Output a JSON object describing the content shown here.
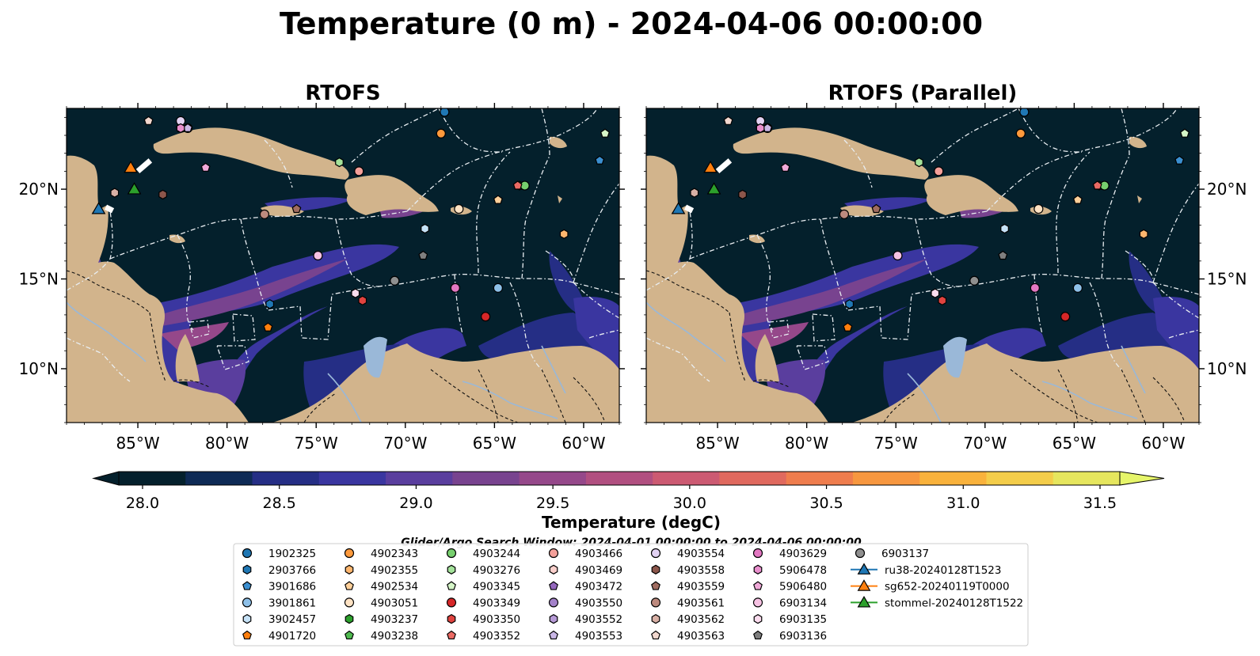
{
  "title": "Temperature (0 m) - 2024-04-06 00:00:00",
  "panels": [
    {
      "title": "RTOFS"
    },
    {
      "title": "RTOFS (Parallel)"
    }
  ],
  "map": {
    "lon_range": [
      -89,
      -58
    ],
    "lat_range": [
      7,
      24.5
    ],
    "lon_ticks": [
      "85°W",
      "80°W",
      "75°W",
      "70°W",
      "65°W",
      "60°W"
    ],
    "lon_tick_values": [
      -85,
      -80,
      -75,
      -70,
      -65,
      -60
    ],
    "lat_ticks": [
      "20°N",
      "15°N",
      "10°N"
    ],
    "lat_tick_values": [
      20,
      15,
      10
    ],
    "land_color": "#d2b48c",
    "ocean_color": "#04202c",
    "river_color": "#9ab8d8"
  },
  "colorbar": {
    "label": "Temperature (degC)",
    "min": 28.0,
    "max": 31.5,
    "ticks": [
      "28.0",
      "28.5",
      "29.0",
      "29.5",
      "30.0",
      "30.5",
      "31.0",
      "31.5"
    ],
    "colors": [
      "#04202c",
      "#0e2a55",
      "#252e85",
      "#3a36a0",
      "#5a3e9e",
      "#78438f",
      "#95488a",
      "#b14f80",
      "#cc5a72",
      "#e0695e",
      "#ef7d4d",
      "#f7973f",
      "#f9b23c",
      "#f4cd4a",
      "#e6e65e"
    ],
    "extend_low_color": "#04202c",
    "extend_high_color": "#e6f56a"
  },
  "search_window_note": "Glider/Argo Search Window: 2024-04-01 00:00:00 to 2024-04-06 00:00:00",
  "legend": [
    {
      "label": "1902325",
      "marker": "circle",
      "color": "#1f77b4"
    },
    {
      "label": "2903766",
      "marker": "hexagon",
      "color": "#1f77b4"
    },
    {
      "label": "3901686",
      "marker": "pentagon",
      "color": "#3b8fd0"
    },
    {
      "label": "3901861",
      "marker": "circle",
      "color": "#8ec0e8"
    },
    {
      "label": "3902457",
      "marker": "hexagon",
      "color": "#c6e2f7"
    },
    {
      "label": "4901720",
      "marker": "pentagon",
      "color": "#ff7f0e"
    },
    {
      "label": "4902343",
      "marker": "circle",
      "color": "#ff9a3c"
    },
    {
      "label": "4902355",
      "marker": "hexagon",
      "color": "#ffb66e"
    },
    {
      "label": "4902534",
      "marker": "pentagon",
      "color": "#ffd09a"
    },
    {
      "label": "4903051",
      "marker": "circle",
      "color": "#ffe3c4"
    },
    {
      "label": "4903237",
      "marker": "hexagon",
      "color": "#2ca02c"
    },
    {
      "label": "4903238",
      "marker": "pentagon",
      "color": "#4fba4f"
    },
    {
      "label": "4903244",
      "marker": "circle",
      "color": "#77cf6e"
    },
    {
      "label": "4903276",
      "marker": "hexagon",
      "color": "#a4e29a"
    },
    {
      "label": "4903345",
      "marker": "pentagon",
      "color": "#d6f6c8"
    },
    {
      "label": "4903349",
      "marker": "circle",
      "color": "#d62728"
    },
    {
      "label": "4903350",
      "marker": "hexagon",
      "color": "#e0433f"
    },
    {
      "label": "4903352",
      "marker": "pentagon",
      "color": "#ea6a64"
    },
    {
      "label": "4903466",
      "marker": "circle",
      "color": "#f4a09a"
    },
    {
      "label": "4903469",
      "marker": "hexagon",
      "color": "#fbd0cc"
    },
    {
      "label": "4903472",
      "marker": "pentagon",
      "color": "#9467bd"
    },
    {
      "label": "4903550",
      "marker": "circle",
      "color": "#a381c9"
    },
    {
      "label": "4903552",
      "marker": "hexagon",
      "color": "#b69ad6"
    },
    {
      "label": "4903553",
      "marker": "pentagon",
      "color": "#cab7e6"
    },
    {
      "label": "4903554",
      "marker": "circle",
      "color": "#e2d2f3"
    },
    {
      "label": "4903558",
      "marker": "hexagon",
      "color": "#8c564b"
    },
    {
      "label": "4903559",
      "marker": "pentagon",
      "color": "#a06c60"
    },
    {
      "label": "4903561",
      "marker": "circle",
      "color": "#bd8a7e"
    },
    {
      "label": "4903562",
      "marker": "hexagon",
      "color": "#d8b0a5"
    },
    {
      "label": "4903563",
      "marker": "pentagon",
      "color": "#f2d8cf"
    },
    {
      "label": "4903629",
      "marker": "circle",
      "color": "#e377c2"
    },
    {
      "label": "5906478",
      "marker": "hexagon",
      "color": "#e98fcd"
    },
    {
      "label": "5906480",
      "marker": "pentagon",
      "color": "#f0a9d8"
    },
    {
      "label": "6903134",
      "marker": "circle",
      "color": "#f6c2e3"
    },
    {
      "label": "6903135",
      "marker": "hexagon",
      "color": "#fbdcee"
    },
    {
      "label": "6903136",
      "marker": "pentagon",
      "color": "#7f7f7f"
    },
    {
      "label": "6903137",
      "marker": "circle",
      "color": "#8f8f8f"
    },
    {
      "label": "ru38-20240128T1523",
      "marker": "triangle",
      "color": "#1f77b4"
    },
    {
      "label": "sg652-20240119T0000",
      "marker": "triangle",
      "color": "#ff7f0e"
    },
    {
      "label": "stommel-20240128T1522",
      "marker": "triangle",
      "color": "#2ca02c"
    }
  ],
  "argo_floats": [
    {
      "id": "1902325",
      "lon": -67.8,
      "lat": 24.3
    },
    {
      "id": "2903766",
      "lon": -77.6,
      "lat": 13.6
    },
    {
      "id": "3901686",
      "lon": -59.1,
      "lat": 21.6
    },
    {
      "id": "3901861",
      "lon": -64.8,
      "lat": 14.5
    },
    {
      "id": "3902457",
      "lon": -68.9,
      "lat": 17.8
    },
    {
      "id": "4901720",
      "lon": -77.7,
      "lat": 12.3
    },
    {
      "id": "4902343",
      "lon": -68.0,
      "lat": 23.1
    },
    {
      "id": "4902355",
      "lon": -61.1,
      "lat": 17.5
    },
    {
      "id": "4902534",
      "lon": -64.8,
      "lat": 19.4
    },
    {
      "id": "4903051",
      "lon": -67.0,
      "lat": 18.9
    },
    {
      "id": "4903237",
      "lon": -63.6,
      "lat": 20.2
    },
    {
      "id": "4903238",
      "lon": -63.6,
      "lat": 20.2
    },
    {
      "id": "4903244",
      "lon": -63.3,
      "lat": 20.2
    },
    {
      "id": "4903276",
      "lon": -73.7,
      "lat": 21.5
    },
    {
      "id": "4903345",
      "lon": -58.8,
      "lat": 23.1
    },
    {
      "id": "4903349",
      "lon": -65.5,
      "lat": 12.9
    },
    {
      "id": "4903350",
      "lon": -72.4,
      "lat": 13.8
    },
    {
      "id": "4903352",
      "lon": -63.7,
      "lat": 20.2
    },
    {
      "id": "4903466",
      "lon": -72.6,
      "lat": 21.0
    },
    {
      "id": "4903469",
      "lon": -82.6,
      "lat": 23.8
    },
    {
      "id": "4903472",
      "lon": -82.6,
      "lat": 23.4
    },
    {
      "id": "4903550",
      "lon": -82.2,
      "lat": 23.4
    },
    {
      "id": "4903552",
      "lon": -82.2,
      "lat": 23.4
    },
    {
      "id": "4903553",
      "lon": -82.2,
      "lat": 23.4
    },
    {
      "id": "4903554",
      "lon": -82.6,
      "lat": 23.8
    },
    {
      "id": "4903558",
      "lon": -83.6,
      "lat": 19.7
    },
    {
      "id": "4903559",
      "lon": -76.1,
      "lat": 18.9
    },
    {
      "id": "4903561",
      "lon": -77.9,
      "lat": 18.6
    },
    {
      "id": "4903562",
      "lon": -86.3,
      "lat": 19.8
    },
    {
      "id": "4903563",
      "lon": -84.4,
      "lat": 23.8
    },
    {
      "id": "4903629",
      "lon": -67.2,
      "lat": 14.5
    },
    {
      "id": "5906478",
      "lon": -82.6,
      "lat": 23.4
    },
    {
      "id": "5906480",
      "lon": -81.2,
      "lat": 21.2
    },
    {
      "id": "6903134",
      "lon": -74.9,
      "lat": 16.3
    },
    {
      "id": "6903135",
      "lon": -72.8,
      "lat": 14.2
    },
    {
      "id": "6903136",
      "lon": -69.0,
      "lat": 16.3
    },
    {
      "id": "6903137",
      "lon": -70.6,
      "lat": 14.9
    }
  ],
  "gliders": [
    {
      "id": "ru38-20240128T1523",
      "lon": -87.2,
      "lat": 18.9
    },
    {
      "id": "sg652-20240119T0000",
      "lon": -85.4,
      "lat": 21.2
    },
    {
      "id": "stommel-20240128T1522",
      "lon": -85.2,
      "lat": 20.0
    }
  ]
}
